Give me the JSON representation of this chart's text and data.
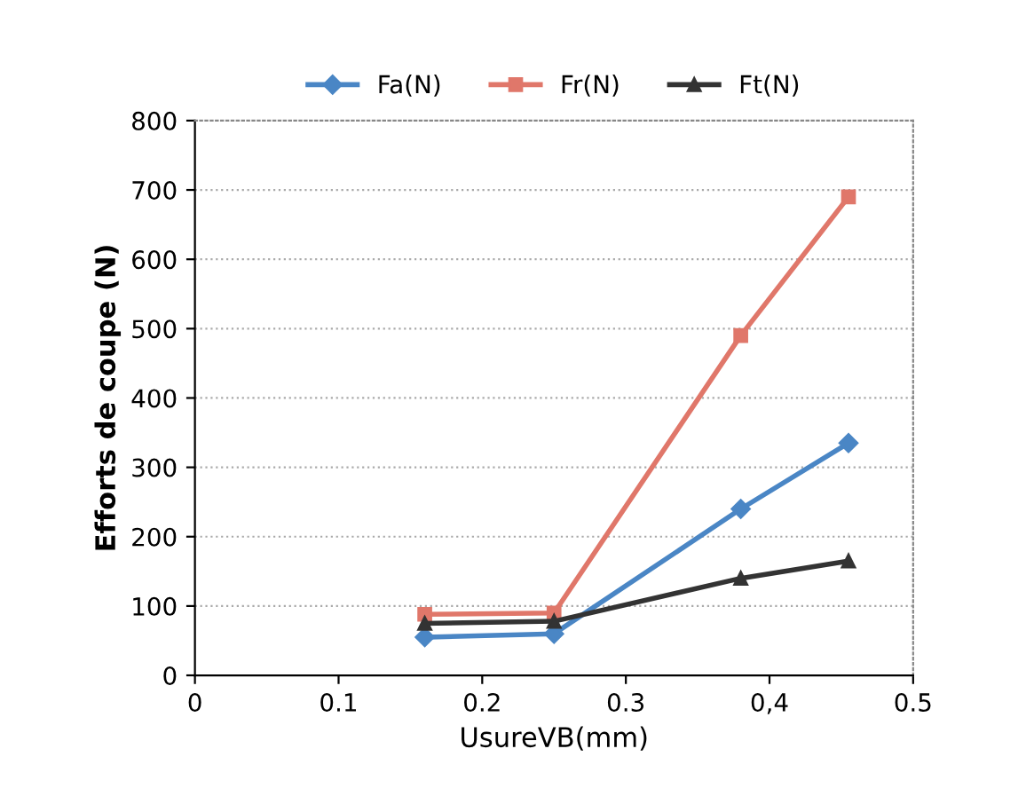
{
  "chart_data": {
    "type": "line",
    "xlabel": "UsureVB(mm)",
    "ylabel": "Efforts de coupe (N)",
    "x": [
      0.16,
      0.25,
      0.38,
      0.455
    ],
    "series": [
      {
        "name": "Fa(N)",
        "color": "#4a86c5",
        "marker": "diamond",
        "values": [
          55,
          60,
          240,
          335
        ]
      },
      {
        "name": "Fr(N)",
        "color": "#e0776a",
        "marker": "square",
        "values": [
          88,
          90,
          490,
          690
        ]
      },
      {
        "name": "Ft(N)",
        "color": "#333333",
        "marker": "triangle",
        "values": [
          75,
          78,
          140,
          165
        ]
      }
    ],
    "xlim": [
      0,
      0.5
    ],
    "xticks": [
      0,
      0.1,
      0.2,
      0.3,
      {
        "value": 0.4,
        "label": "0,4"
      },
      0.5
    ],
    "ylim": [
      0,
      800
    ],
    "yticks": [
      0,
      100,
      200,
      300,
      400,
      500,
      600,
      700,
      800
    ],
    "grid": "y",
    "legend": "top",
    "line_style": "solid"
  }
}
